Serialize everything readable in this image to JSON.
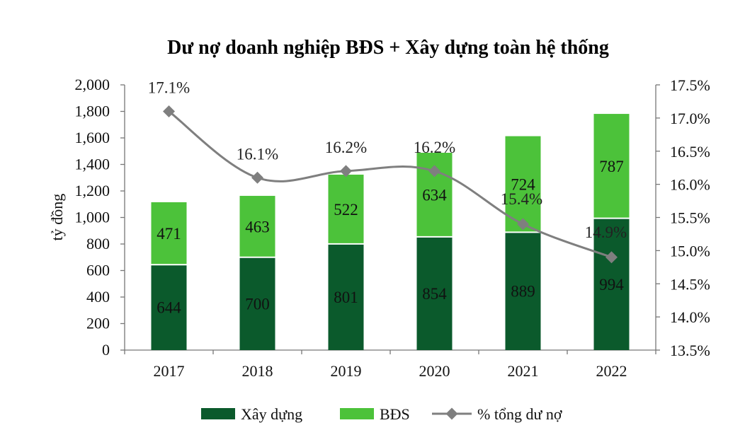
{
  "chart_data": {
    "type": "bar",
    "stacked": true,
    "title": "Dư nợ doanh nghiệp BĐS + Xây dựng toàn hệ thống",
    "ylabel": "tỷ đồng",
    "categories": [
      "2017",
      "2018",
      "2019",
      "2020",
      "2021",
      "2022"
    ],
    "ylim": [
      0,
      2000
    ],
    "yticks": [
      "0",
      "200",
      "400",
      "600",
      "800",
      "1,000",
      "1,200",
      "1,400",
      "1,600",
      "1,800",
      "2,000"
    ],
    "ylim_right": [
      13.5,
      17.5
    ],
    "yticks_right": [
      "13.5%",
      "14.0%",
      "14.5%",
      "15.0%",
      "15.5%",
      "16.0%",
      "16.5%",
      "17.0%",
      "17.5%"
    ],
    "series": [
      {
        "name": "Xây dựng",
        "type": "bar",
        "color": "#0b5a2c",
        "values": [
          644,
          700,
          801,
          854,
          889,
          994
        ]
      },
      {
        "name": "BĐS",
        "type": "bar",
        "color": "#4cc23a",
        "values": [
          471,
          463,
          522,
          634,
          724,
          787
        ]
      },
      {
        "name": "% tổng dư nợ",
        "type": "line",
        "axis": "right",
        "color": "#7f7f7f",
        "values": [
          17.1,
          16.1,
          16.2,
          16.2,
          15.4,
          14.9
        ],
        "labels": [
          "17.1%",
          "16.1%",
          "16.2%",
          "16.2%",
          "15.4%",
          "14.9%"
        ]
      }
    ],
    "legend": "bottom"
  }
}
